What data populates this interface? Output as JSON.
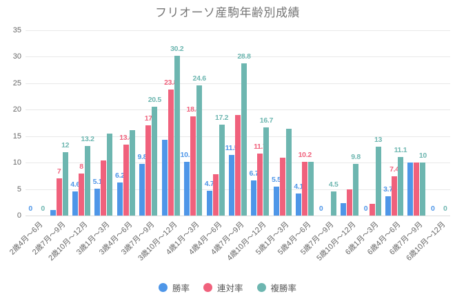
{
  "chart_data": {
    "type": "bar",
    "title": "フリオーソ産駒年齢別成績",
    "categories": [
      "2歳4月〜6月",
      "2歳7月〜9月",
      "2歳10月〜12月",
      "3歳1月〜3月",
      "3歳4月〜6月",
      "3歳7月〜9月",
      "3歳10月〜12月",
      "4歳1月〜3月",
      "4歳4月〜6月",
      "4歳7月〜9月",
      "4歳10月〜12月",
      "5歳1月〜3月",
      "5歳4月〜6月",
      "5歳7月〜9月",
      "5歳10月〜12月",
      "6歳1月〜3月",
      "6歳4月〜6月",
      "6歳7月〜9月",
      "6歳10月〜12月"
    ],
    "series": [
      {
        "name": "勝率",
        "color": "#4E96E8",
        "values": [
          0,
          1,
          4.6,
          5.1,
          6.2,
          9.8,
          14.3,
          10.1,
          4.7,
          11.5,
          6.7,
          5.5,
          4.1,
          0,
          2.4,
          0,
          3.7,
          10,
          0
        ],
        "labels": [
          "0",
          "",
          "4.6",
          "5.1",
          "6.2",
          "9.8",
          "",
          "10.1",
          "4.7",
          "11.5",
          "6.7",
          "5.5",
          "4.1",
          "0",
          "",
          "0",
          "3.7",
          "",
          "0"
        ]
      },
      {
        "name": "連対率",
        "color": "#F0617C",
        "values": [
          0,
          7,
          8,
          10.4,
          13.4,
          17,
          23.8,
          18.8,
          7.8,
          19,
          11.7,
          10.9,
          10.2,
          0,
          4.9,
          2.2,
          7.4,
          10,
          0
        ],
        "labels": [
          "",
          "7",
          "8",
          "",
          "13.4",
          "17",
          "23.8",
          "18.8",
          "",
          "",
          "11.7",
          "",
          "10.2",
          "",
          "",
          "",
          "7.4",
          "",
          ""
        ]
      },
      {
        "name": "複勝率",
        "color": "#6DB6B0",
        "values": [
          0,
          12,
          13.2,
          15.5,
          16.1,
          20.5,
          30.2,
          24.6,
          17.2,
          28.8,
          16.7,
          16.4,
          10.2,
          4.5,
          9.8,
          13,
          11.1,
          10,
          0
        ],
        "labels": [
          "0",
          "12",
          "13.2",
          "",
          "",
          "20.5",
          "30.2",
          "24.6",
          "17.2",
          "28.8",
          "16.7",
          "",
          "",
          "4.5",
          "9.8",
          "13",
          "11.1",
          "10",
          "0"
        ]
      }
    ],
    "ylim": [
      0,
      35
    ],
    "yticks": [
      0,
      5,
      10,
      15,
      20,
      25,
      30,
      35
    ],
    "grid": true,
    "legend_position": "bottom"
  }
}
